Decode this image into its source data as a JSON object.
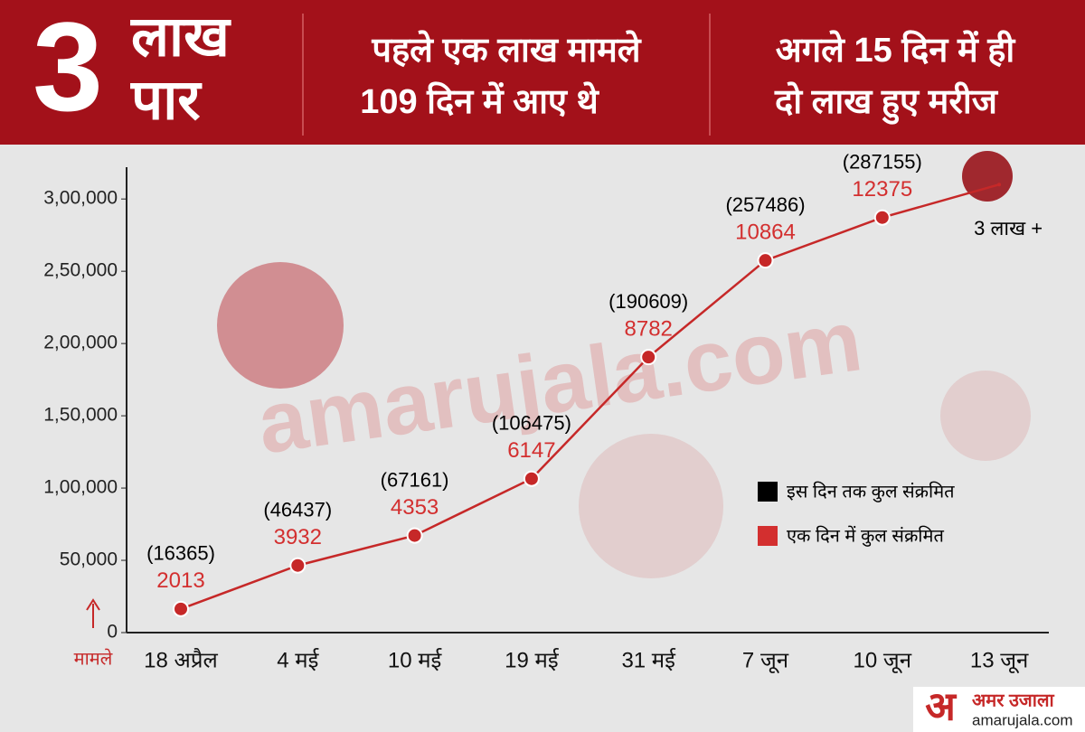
{
  "header": {
    "big": "3",
    "word1": "लाख",
    "word2": "पार",
    "note1": [
      "पहले एक लाख मामले",
      "109 दिन में आए थे"
    ],
    "note2": [
      "अगले 15 दिन में ही",
      "दो लाख हुए मरीज"
    ]
  },
  "footer": {
    "logo_letter": "अ",
    "logo_name": "अमर उजाला",
    "logo_site": "amarujala.com",
    "watermark": "amarujala.com"
  },
  "chart_data": {
    "type": "line",
    "y_label": "मामले",
    "categories": [
      "18 अप्रैल",
      "4 मई",
      "10 मई",
      "19 मई",
      "31 मई",
      "7 जून",
      "10 जून",
      "13 जून"
    ],
    "series": [
      {
        "name": "इस दिन तक कुल संक्रमित",
        "color": "#000000",
        "values": [
          16365,
          46437,
          67161,
          106475,
          190609,
          257486,
          287155,
          310000
        ],
        "value_labels": [
          "(16365)",
          "(46437)",
          "(67161)",
          "(106475)",
          "(190609)",
          "(257486)",
          "(287155)",
          "3 लाख +"
        ]
      },
      {
        "name": "एक दिन में कुल संक्रमित",
        "color": "#d32f2f",
        "values": [
          2013,
          3932,
          4353,
          6147,
          8782,
          10864,
          12375,
          null
        ]
      }
    ],
    "line_color": "#c62828",
    "ylim": [
      0,
      322000
    ],
    "yticks": [
      0,
      {
        "value": 50000,
        "label": "50,000"
      },
      {
        "value": 100000,
        "label": "1,00,000"
      },
      {
        "value": 150000,
        "label": "1,50,000"
      },
      {
        "value": 200000,
        "label": "2,00,000"
      },
      {
        "value": 250000,
        "label": "2,50,000"
      },
      {
        "value": 300000,
        "label": "3,00,000"
      }
    ]
  }
}
